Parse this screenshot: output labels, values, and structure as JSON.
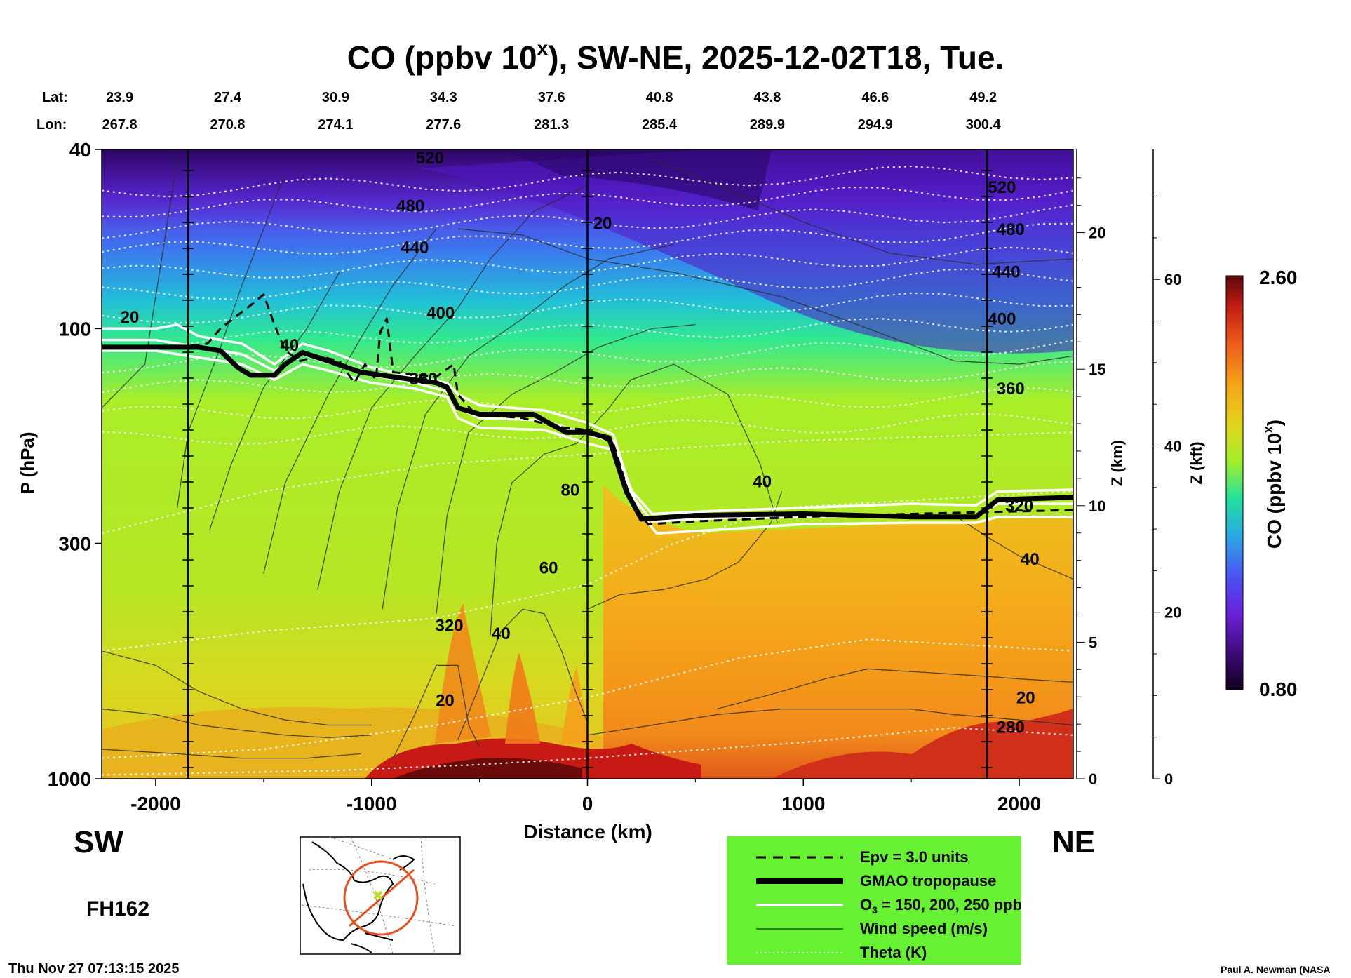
{
  "chart_data": {
    "type": "heatmap",
    "title_main": "CO (ppbv 10",
    "title_sup": "x",
    "title_rest": "), SW-NE, 2025-12-02T18, Tue.",
    "xlabel": "Distance (km)",
    "ylabel": "P (hPa)",
    "z_km_label": "Z (km)",
    "z_kft_label": "Z (kft)",
    "colorbar_label_main": "CO (ppbv 10",
    "colorbar_label_sup": "x",
    "colorbar_label_rest": ")",
    "colorbar_range": [
      0.8,
      2.6
    ],
    "colorbar_max_label": "2.60",
    "colorbar_min_label": "0.80",
    "xlim": [
      -2250,
      2250
    ],
    "x_ticks": [
      -2000,
      -1000,
      0,
      1000,
      2000
    ],
    "x_tick_labels": [
      "-2000",
      "-1000",
      "0",
      "1000",
      "2000"
    ],
    "ylim_hpa": [
      1000,
      40
    ],
    "y_ticks_hpa": [
      40,
      100,
      300,
      1000
    ],
    "y_tick_labels": [
      "40",
      "100",
      "300",
      "1000"
    ],
    "z_km_ticks": [
      0,
      5,
      10,
      15,
      20
    ],
    "z_km_labels": [
      "0",
      "5",
      "10",
      "15",
      "20"
    ],
    "z_kft_ticks": [
      0,
      20,
      40,
      60
    ],
    "z_kft_labels": [
      "0",
      "20",
      "40",
      "60"
    ],
    "lat_label": "Lat:",
    "lon_label": "Lon:",
    "lat_lon_positions_km": [
      -2222,
      -1722,
      -1222,
      -722,
      -222,
      278,
      778,
      1278,
      1778
    ],
    "lats": [
      "23.9",
      "27.4",
      "30.9",
      "34.3",
      "37.6",
      "40.8",
      "43.8",
      "46.6",
      "49.2"
    ],
    "lons": [
      "267.8",
      "270.8",
      "274.1",
      "277.6",
      "281.3",
      "285.4",
      "289.9",
      "294.9",
      "300.4"
    ],
    "vertical_markers_km": [
      -1850,
      0,
      1850
    ],
    "theta_labels": [
      {
        "text": "520",
        "x": -730,
        "p": 43
      },
      {
        "text": "480",
        "x": -820,
        "p": 55
      },
      {
        "text": "440",
        "x": -800,
        "p": 68
      },
      {
        "text": "400",
        "x": -680,
        "p": 95
      },
      {
        "text": "360",
        "x": -760,
        "p": 133
      },
      {
        "text": "320",
        "x": -640,
        "p": 470
      },
      {
        "text": "520",
        "x": 1920,
        "p": 50
      },
      {
        "text": "480",
        "x": 1960,
        "p": 62
      },
      {
        "text": "440",
        "x": 1940,
        "p": 77
      },
      {
        "text": "400",
        "x": 1920,
        "p": 98
      },
      {
        "text": "360",
        "x": 1960,
        "p": 140
      },
      {
        "text": "320",
        "x": 2000,
        "p": 255
      },
      {
        "text": "280",
        "x": 1960,
        "p": 790
      }
    ],
    "wind_labels": [
      {
        "text": "20",
        "x": -2120,
        "p": 97
      },
      {
        "text": "40",
        "x": -1380,
        "p": 112
      },
      {
        "text": "20",
        "x": 70,
        "p": 60
      },
      {
        "text": "80",
        "x": -80,
        "p": 235
      },
      {
        "text": "60",
        "x": -180,
        "p": 350
      },
      {
        "text": "40",
        "x": -400,
        "p": 490
      },
      {
        "text": "20",
        "x": -660,
        "p": 690
      },
      {
        "text": "40",
        "x": 810,
        "p": 225
      },
      {
        "text": "40",
        "x": 2050,
        "p": 335
      },
      {
        "text": "20",
        "x": 2030,
        "p": 680
      }
    ],
    "tropopause_hpa": [
      [
        -2250,
        110
      ],
      [
        -1800,
        110
      ],
      [
        -1700,
        112
      ],
      [
        -1620,
        122
      ],
      [
        -1560,
        127
      ],
      [
        -1450,
        127
      ],
      [
        -1400,
        120
      ],
      [
        -1320,
        113
      ],
      [
        -1200,
        118
      ],
      [
        -1050,
        125
      ],
      [
        -900,
        128
      ],
      [
        -700,
        132
      ],
      [
        -650,
        135
      ],
      [
        -600,
        150
      ],
      [
        -500,
        155
      ],
      [
        -250,
        155
      ],
      [
        -200,
        160
      ],
      [
        -100,
        170
      ],
      [
        0,
        170
      ],
      [
        100,
        175
      ],
      [
        180,
        230
      ],
      [
        250,
        265
      ],
      [
        500,
        260
      ],
      [
        1000,
        258
      ],
      [
        1500,
        262
      ],
      [
        1800,
        262
      ],
      [
        1900,
        240
      ],
      [
        2250,
        237
      ]
    ],
    "ozone_contours_hpa": [
      [
        [
          -2250,
          100
        ],
        [
          -2000,
          100
        ],
        [
          -1900,
          98
        ],
        [
          -1800,
          104
        ],
        [
          -1600,
          108
        ],
        [
          -1450,
          120
        ],
        [
          -1320,
          108
        ],
        [
          -1200,
          112
        ],
        [
          -1000,
          122
        ],
        [
          -800,
          128
        ],
        [
          -650,
          132
        ],
        [
          -600,
          140
        ],
        [
          -500,
          148
        ],
        [
          -200,
          152
        ],
        [
          0,
          162
        ],
        [
          120,
          172
        ],
        [
          200,
          228
        ],
        [
          300,
          258
        ],
        [
          600,
          254
        ],
        [
          1000,
          250
        ],
        [
          1500,
          245
        ],
        [
          1800,
          247
        ],
        [
          1900,
          230
        ],
        [
          2250,
          228
        ]
      ],
      [
        [
          -2250,
          106
        ],
        [
          -2000,
          106
        ],
        [
          -1800,
          110
        ],
        [
          -1600,
          114
        ],
        [
          -1450,
          124
        ],
        [
          -1320,
          114
        ],
        [
          -1200,
          119
        ],
        [
          -1000,
          127
        ],
        [
          -800,
          132
        ],
        [
          -650,
          138
        ],
        [
          -600,
          150
        ],
        [
          -500,
          158
        ],
        [
          -200,
          160
        ],
        [
          0,
          172
        ],
        [
          120,
          178
        ],
        [
          220,
          240
        ],
        [
          300,
          268
        ],
        [
          600,
          264
        ],
        [
          1000,
          262
        ],
        [
          1500,
          260
        ],
        [
          1800,
          262
        ],
        [
          1900,
          245
        ],
        [
          2250,
          245
        ]
      ],
      [
        [
          -2250,
          112
        ],
        [
          -2000,
          112
        ],
        [
          -1800,
          116
        ],
        [
          -1600,
          120
        ],
        [
          -1450,
          130
        ],
        [
          -1320,
          120
        ],
        [
          -1200,
          124
        ],
        [
          -1000,
          132
        ],
        [
          -800,
          136
        ],
        [
          -650,
          142
        ],
        [
          -600,
          158
        ],
        [
          -500,
          166
        ],
        [
          -200,
          168
        ],
        [
          0,
          180
        ],
        [
          120,
          186
        ],
        [
          240,
          255
        ],
        [
          320,
          285
        ],
        [
          600,
          280
        ],
        [
          1000,
          272
        ],
        [
          1500,
          270
        ],
        [
          1800,
          270
        ],
        [
          1900,
          262
        ],
        [
          2250,
          262
        ]
      ]
    ],
    "epv_contour_hpa": [
      [
        -1900,
        110
      ],
      [
        -1760,
        108
      ],
      [
        -1700,
        100
      ],
      [
        -1640,
        95
      ],
      [
        -1550,
        88
      ],
      [
        -1500,
        84
      ],
      [
        -1450,
        98
      ],
      [
        -1400,
        112
      ],
      [
        -1330,
        118
      ],
      [
        -1250,
        115
      ],
      [
        -1150,
        118
      ],
      [
        -1080,
        132
      ],
      [
        -1030,
        120
      ],
      [
        -980,
        130
      ],
      [
        -960,
        102
      ],
      [
        -930,
        95
      ],
      [
        -900,
        125
      ],
      [
        -700,
        128
      ],
      [
        -620,
        120
      ],
      [
        -600,
        140
      ],
      [
        -520,
        155
      ],
      [
        -300,
        158
      ],
      [
        -150,
        165
      ],
      [
        0,
        168
      ],
      [
        120,
        180
      ],
      [
        200,
        240
      ],
      [
        280,
        272
      ],
      [
        500,
        268
      ],
      [
        1000,
        262
      ],
      [
        1500,
        258
      ],
      [
        1800,
        256
      ],
      [
        2250,
        253
      ]
    ],
    "legend": [
      {
        "style": "epv",
        "label_main": "Epv = 3.0 units"
      },
      {
        "style": "tropopause",
        "label_main": "GMAO tropopause"
      },
      {
        "style": "ozone",
        "label_main": "O",
        "label_sub": "3",
        "label_rest": " = 150, 200, 250 ppb"
      },
      {
        "style": "wind",
        "label_main": "Wind speed (m/s)"
      },
      {
        "style": "theta",
        "label_main": "Theta (K)"
      }
    ]
  },
  "labels": {
    "sw": "SW",
    "ne": "NE",
    "forecast_hour": "FH162",
    "timestamp": "Thu Nov 27 07:13:15 2025",
    "author": "Paul A. Newman (NASA"
  },
  "colors": {
    "legend_bg": "#66f233",
    "colormap": [
      "#100020",
      "#3a0870",
      "#6a20d8",
      "#4c50f0",
      "#2aa8e6",
      "#22e0a0",
      "#9ef02a",
      "#e2d41c",
      "#f5a81a",
      "#f0601a",
      "#c01a14",
      "#5a0808"
    ]
  }
}
